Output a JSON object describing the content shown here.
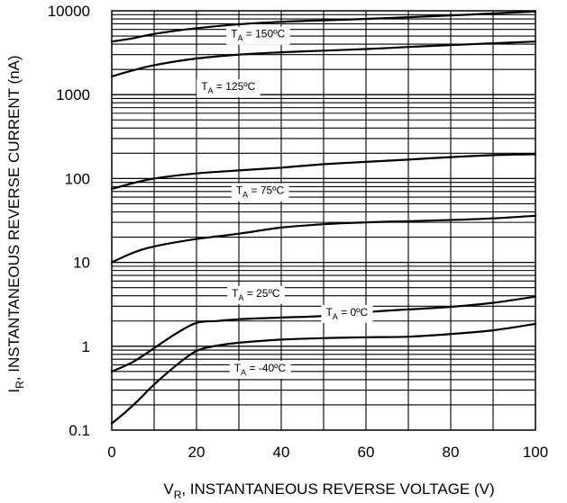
{
  "chart_data": {
    "type": "line",
    "xlabel": {
      "main": "V",
      "sub": "R",
      "rest": ", INSTANTANEOUS REVERSE VOLTAGE (V)"
    },
    "ylabel": {
      "main": "I",
      "sub": "R",
      "rest": ", INSTANTANEOUS REVERSE CURRENT (nA)"
    },
    "xlim": [
      0,
      100
    ],
    "ylim": [
      0.1,
      10000
    ],
    "yscale": "log",
    "grid": true,
    "x_ticks": [
      "0",
      "20",
      "40",
      "60",
      "80",
      "100"
    ],
    "y_ticks": [
      "0.1",
      "1",
      "10",
      "100",
      "1000",
      "10000"
    ],
    "series": [
      {
        "name": "T_A = 150ºC",
        "label_main": "T",
        "label_sub": "A",
        "label_rest": " = 150ºC",
        "x": [
          0,
          5,
          10,
          20,
          30,
          40,
          50,
          60,
          70,
          80,
          90,
          100
        ],
        "y": [
          4300,
          4700,
          5300,
          6200,
          6900,
          7400,
          7700,
          8000,
          8400,
          8800,
          9300,
          9800
        ]
      },
      {
        "name": "T_A = 125ºC",
        "label_main": "T",
        "label_sub": "A",
        "label_rest": " = 125ºC",
        "x": [
          0,
          5,
          10,
          20,
          30,
          40,
          50,
          60,
          70,
          80,
          90,
          100
        ],
        "y": [
          1650,
          1950,
          2250,
          2700,
          3000,
          3200,
          3350,
          3500,
          3700,
          3900,
          4100,
          4300
        ]
      },
      {
        "name": "T_A = 75ºC",
        "label_main": "T",
        "label_sub": "A",
        "label_rest": " = 75ºC",
        "x": [
          0,
          5,
          10,
          20,
          30,
          40,
          50,
          60,
          70,
          80,
          90,
          100
        ],
        "y": [
          75,
          88,
          100,
          115,
          125,
          135,
          148,
          158,
          168,
          180,
          190,
          195
        ]
      },
      {
        "name": "T_A = 25ºC",
        "label_main": "T",
        "label_sub": "A",
        "label_rest": " = 25ºC",
        "x": [
          0,
          5,
          10,
          20,
          30,
          40,
          50,
          60,
          70,
          80,
          90,
          100
        ],
        "y": [
          10,
          13,
          15.5,
          19,
          22,
          26,
          28.5,
          30,
          31,
          32,
          33.5,
          36
        ]
      },
      {
        "name": "T_A = 0ºC",
        "label_main": "T",
        "label_sub": "A",
        "label_rest": " = 0ºC",
        "x": [
          0,
          5,
          10,
          15,
          20,
          25,
          30,
          40,
          50,
          60,
          70,
          80,
          90,
          100
        ],
        "y": [
          0.5,
          0.65,
          0.95,
          1.4,
          1.9,
          2.0,
          2.1,
          2.2,
          2.3,
          2.55,
          2.75,
          2.95,
          3.3,
          3.9
        ]
      },
      {
        "name": "T_A = -40ºC",
        "label_main": "T",
        "label_sub": "A",
        "label_rest": " = -40ºC",
        "x": [
          0,
          3,
          6,
          10,
          15,
          20,
          25,
          30,
          40,
          50,
          60,
          70,
          80,
          90,
          100
        ],
        "y": [
          0.12,
          0.16,
          0.22,
          0.35,
          0.58,
          0.88,
          1.02,
          1.1,
          1.2,
          1.25,
          1.28,
          1.3,
          1.4,
          1.55,
          1.85
        ]
      }
    ]
  }
}
